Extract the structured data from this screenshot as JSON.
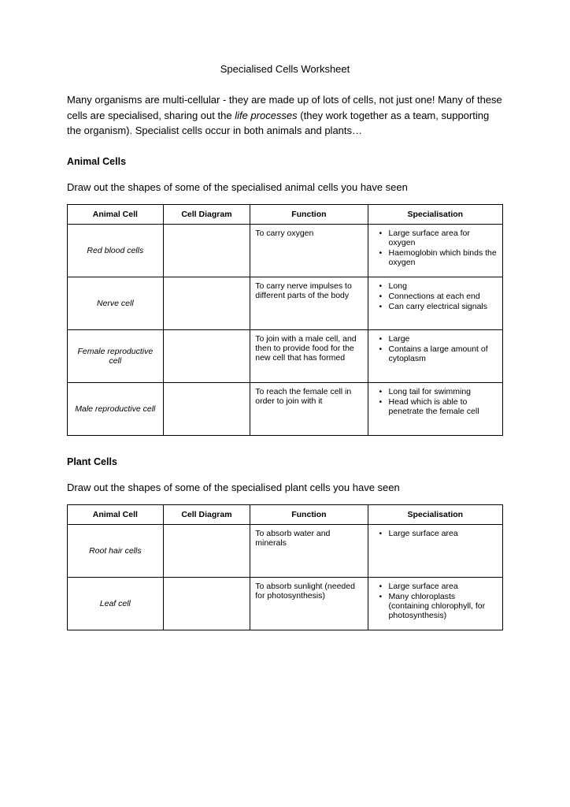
{
  "title": "Specialised Cells Worksheet",
  "intro_part1": "Many organisms are multi-cellular - they are made up of lots of cells, not just one! Many of these cells are specialised, sharing out the ",
  "intro_italic": "life processes",
  "intro_part2": " (they work together as a team, supporting the organism). Specialist cells occur in both animals and plants…",
  "animal_section": {
    "heading": "Animal Cells",
    "instruction": "Draw out the shapes of some of the specialised animal cells you have seen",
    "headers": {
      "c1": "Animal Cell",
      "c2": "Cell Diagram",
      "c3": "Function",
      "c4": "Specialisation"
    },
    "rows": [
      {
        "name": "Red blood cells",
        "func": "To carry oxygen",
        "spec": [
          "Large surface area for oxygen",
          "Haemoglobin which binds the oxygen"
        ]
      },
      {
        "name": "Nerve cell",
        "func": "To carry nerve impulses to different parts of the body",
        "spec": [
          "Long",
          "Connections at each end",
          "Can carry electrical signals"
        ]
      },
      {
        "name": "Female reproductive cell",
        "func": "To join with a male cell, and then to provide food for the new cell that has formed",
        "spec": [
          "Large",
          "Contains a large amount of cytoplasm"
        ]
      },
      {
        "name": "Male reproductive cell",
        "func": "To reach the female cell in order to join with it",
        "spec": [
          "Long tail for swimming",
          "Head which is able to penetrate the female cell"
        ]
      }
    ]
  },
  "plant_section": {
    "heading": "Plant Cells",
    "instruction": "Draw out the shapes of some of the specialised plant cells you have seen",
    "headers": {
      "c1": "Animal Cell",
      "c2": "Cell Diagram",
      "c3": "Function",
      "c4": "Specialisation"
    },
    "rows": [
      {
        "name": "Root hair cells",
        "func": "To absorb water and minerals",
        "spec": [
          "Large surface area"
        ]
      },
      {
        "name": "Leaf cell",
        "func": "To absorb sunlight (needed for photosynthesis)",
        "spec": [
          "Large surface area",
          "Many chloroplasts (containing chlorophyll, for photosynthesis)"
        ]
      }
    ]
  },
  "colors": {
    "text": "#000000",
    "background": "#ffffff",
    "border": "#000000"
  },
  "typography": {
    "body_fontsize": 12.5,
    "table_fontsize": 10.5,
    "font_family": "Comic Sans MS"
  }
}
